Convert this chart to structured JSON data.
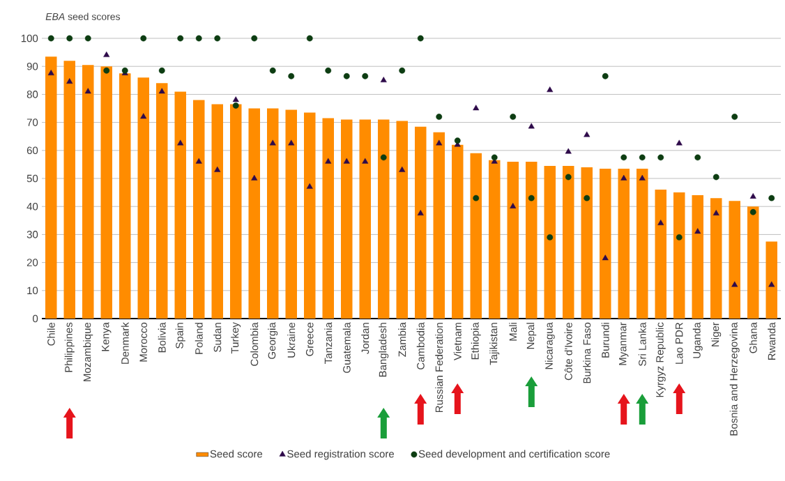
{
  "chart_data": {
    "type": "bar",
    "ylabel": "*EBA* seed scores",
    "categories": [
      "Chile",
      "Philippines",
      "Mozambique",
      "Kenya",
      "Denmark",
      "Morocco",
      "Bolivia",
      "Spain",
      "Poland",
      "Sudan",
      "Turkey",
      "Colombia",
      "Georgia",
      "Ukraine",
      "Greece",
      "Tanzania",
      "Guatemala",
      "Jordan",
      "Bangladesh",
      "Zambia",
      "Cambodia",
      "Russian Federation",
      "Vietnam",
      "Ethiopia",
      "Tajikistan",
      "Mali",
      "Nepal",
      "Nicaragua",
      "Côte d'Ivoire",
      "Burkina Faso",
      "Burundi",
      "Myanmar",
      "Sri Lanka",
      "Kyrgyz Republic",
      "Lao PDR",
      "Uganda",
      "Niger",
      "Bosnia and Herzegovina",
      "Ghana",
      "Rwanda"
    ],
    "series": [
      {
        "name": "Seed score",
        "color": "#ff8c00",
        "values": [
          93.5,
          92,
          90.5,
          90,
          87.5,
          86,
          84,
          81,
          78,
          76.5,
          76.5,
          75,
          75,
          74.5,
          73.5,
          71.5,
          71,
          71,
          71,
          70.5,
          68.5,
          66.5,
          62,
          59,
          56.5,
          56,
          56,
          54.5,
          54.5,
          54,
          53.5,
          53.5,
          53.5,
          46,
          45,
          44,
          43,
          42,
          40,
          27.5
        ]
      },
      {
        "name": "Seed registration score",
        "type": "scatter",
        "marker": "triangle",
        "color": "#2e0a4a",
        "values": [
          87.5,
          84.5,
          81,
          94,
          87.5,
          72,
          81,
          62.5,
          56,
          53,
          78,
          50,
          62.5,
          62.5,
          47,
          56,
          56,
          56,
          85,
          53,
          37.5,
          62.5,
          62,
          75,
          56,
          40,
          68.5,
          81.5,
          59.5,
          65.5,
          21.5,
          50,
          50,
          34,
          62.5,
          31,
          37.5,
          12,
          43.5,
          12
        ]
      },
      {
        "name": "Seed development and certification score",
        "type": "scatter",
        "marker": "circle",
        "color": "#0d3d12",
        "values": [
          100,
          100,
          100,
          88.5,
          88.5,
          100,
          88.5,
          100,
          100,
          100,
          76,
          100,
          88.5,
          86.5,
          100,
          88.5,
          86.5,
          86.5,
          57.5,
          88.5,
          100,
          72,
          63.5,
          43,
          57.5,
          72,
          43,
          29,
          50.5,
          43,
          86.5,
          57.5,
          57.5,
          57.5,
          29,
          57.5,
          50.5,
          72,
          38,
          43
        ]
      }
    ],
    "ylim": [
      0,
      100
    ],
    "yticks": [
      0,
      10,
      20,
      30,
      40,
      50,
      60,
      70,
      80,
      90,
      100
    ],
    "grid": "y",
    "legend": "bottom"
  }
}
